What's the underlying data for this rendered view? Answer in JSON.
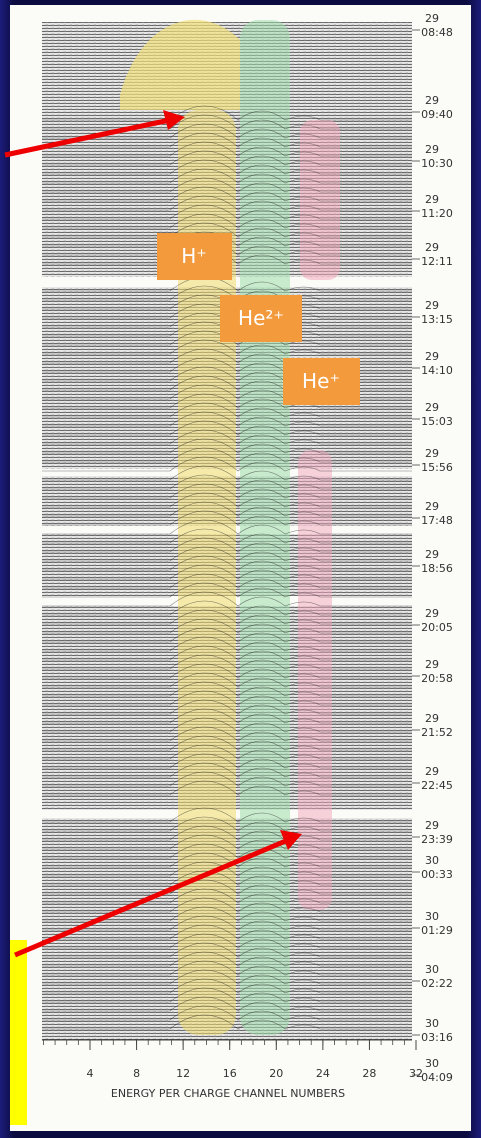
{
  "figure": {
    "x_axis": {
      "label": "ENERGY PER CHARGE CHANNEL NUMBERS",
      "ticks": [
        4,
        8,
        12,
        16,
        20,
        24,
        28,
        32
      ]
    },
    "time_labels": [
      {
        "day": "29",
        "time": "08:48"
      },
      {
        "day": "29",
        "time": "09:40"
      },
      {
        "day": "29",
        "time": "10:30"
      },
      {
        "day": "29",
        "time": "11:20"
      },
      {
        "day": "29",
        "time": "12:11"
      },
      {
        "day": "29",
        "time": "13:15"
      },
      {
        "day": "29",
        "time": "14:10"
      },
      {
        "day": "29",
        "time": "15:03"
      },
      {
        "day": "29",
        "time": "15:56"
      },
      {
        "day": "29",
        "time": "17:48"
      },
      {
        "day": "29",
        "time": "18:56"
      },
      {
        "day": "29",
        "time": "20:05"
      },
      {
        "day": "29",
        "time": "20:58"
      },
      {
        "day": "29",
        "time": "21:52"
      },
      {
        "day": "29",
        "time": "22:45"
      },
      {
        "day": "29",
        "time": "23:39"
      },
      {
        "day": "30",
        "time": "00:33"
      },
      {
        "day": "30",
        "time": "01:29"
      },
      {
        "day": "30",
        "time": "02:22"
      },
      {
        "day": "30",
        "time": "03:16"
      },
      {
        "day": "30",
        "time": "04:09"
      }
    ],
    "ion_labels": [
      "H⁺",
      "He²⁺",
      "He⁺"
    ]
  }
}
